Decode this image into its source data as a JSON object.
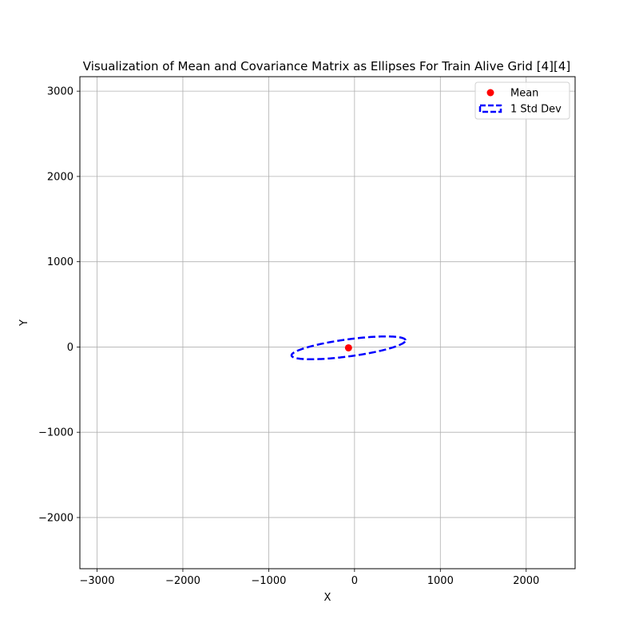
{
  "chart_data": {
    "type": "scatter",
    "title": "Visualization of Mean and Covariance Matrix as Ellipses For Train Alive Grid [4][4]",
    "xlabel": "X",
    "ylabel": "Y",
    "xlim": [
      -3200,
      2570
    ],
    "ylim": [
      -2600,
      3170
    ],
    "xticks": [
      -3000,
      -2000,
      -1000,
      0,
      1000,
      2000
    ],
    "yticks": [
      -2000,
      -1000,
      0,
      1000,
      2000,
      3000
    ],
    "xtick_labels": [
      "−3000",
      "−2000",
      "−1000",
      "0",
      "1000",
      "2000"
    ],
    "ytick_labels": [
      "−2000",
      "−1000",
      "0",
      "1000",
      "2000",
      "3000"
    ],
    "grid": true,
    "legend_position": "upper right",
    "series": [
      {
        "name": "Mean",
        "kind": "point",
        "color": "#ff0000",
        "x": [
          -70
        ],
        "y": [
          -10
        ]
      },
      {
        "name": "1 Std Dev",
        "kind": "ellipse",
        "color": "#0000ff",
        "linestyle": "dashed",
        "center": [
          -70,
          -10
        ],
        "semi_major": 670,
        "semi_minor": 100,
        "angle_deg": 7.7
      }
    ]
  }
}
